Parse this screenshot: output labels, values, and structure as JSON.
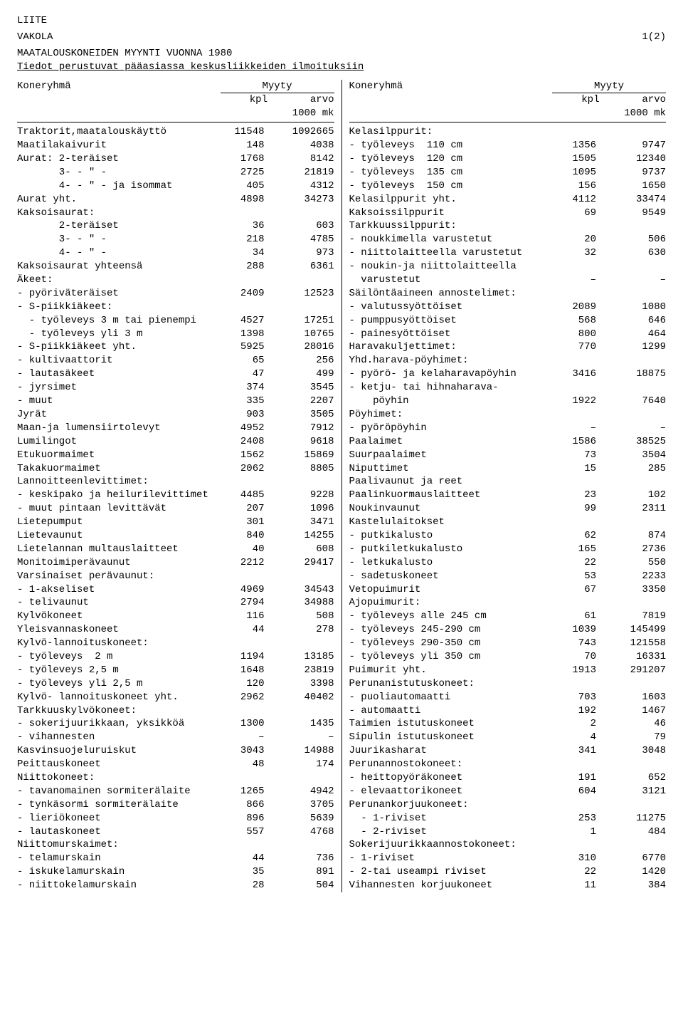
{
  "header": {
    "liite": "LIITE",
    "vakola": "VAKOLA",
    "page": "1(2)",
    "title": "MAATALOUSKONEIDEN MYYNTI VUONNA 1980",
    "subtitle": "Tiedot perustuvat pääasiassa keskusliikkeiden ilmoituksiin"
  },
  "columns": {
    "group": "Koneryhmä",
    "myyty": "Myyty",
    "kpl": "kpl",
    "arvo": "arvo",
    "unit": "1000 mk"
  },
  "left": [
    {
      "n": "Traktorit,maatalouskäyttö",
      "k": "11548",
      "a": "1092665"
    },
    {
      "n": "Maatilakaivurit",
      "k": "148",
      "a": "4038"
    },
    {
      "n": "Aurat: 2-teräiset",
      "k": "1768",
      "a": "8142"
    },
    {
      "n": "       3- - \" -",
      "k": "2725",
      "a": "21819"
    },
    {
      "n": "       4- - \" - ja isommat",
      "k": "405",
      "a": "4312"
    },
    {
      "n": "Aurat yht.",
      "k": "4898",
      "a": "34273"
    },
    {
      "n": "Kaksoisaurat:",
      "k": "",
      "a": ""
    },
    {
      "n": "       2-teräiset",
      "k": "36",
      "a": "603"
    },
    {
      "n": "       3- - \" -",
      "k": "218",
      "a": "4785"
    },
    {
      "n": "       4- - \" -",
      "k": "34",
      "a": "973"
    },
    {
      "n": "Kaksoisaurat yhteensä",
      "k": "288",
      "a": "6361"
    },
    {
      "n": "Äkeet:",
      "k": "",
      "a": ""
    },
    {
      "n": "- pyöriväteräiset",
      "k": "2409",
      "a": "12523"
    },
    {
      "n": "- S-piikkiäkeet:",
      "k": "",
      "a": ""
    },
    {
      "n": "  - työleveys 3 m tai pienempi",
      "k": "4527",
      "a": "17251"
    },
    {
      "n": "  - työleveys yli 3 m",
      "k": "1398",
      "a": "10765"
    },
    {
      "n": "- S-piikkiäkeet yht.",
      "k": "5925",
      "a": "28016"
    },
    {
      "n": "- kultivaattorit",
      "k": "65",
      "a": "256"
    },
    {
      "n": "- lautasäkeet",
      "k": "47",
      "a": "499"
    },
    {
      "n": "- jyrsimet",
      "k": "374",
      "a": "3545"
    },
    {
      "n": "- muut",
      "k": "335",
      "a": "2207"
    },
    {
      "n": "Jyrät",
      "k": "903",
      "a": "3505"
    },
    {
      "n": "Maan-ja lumensiirtolevyt",
      "k": "4952",
      "a": "7912"
    },
    {
      "n": "Lumilingot",
      "k": "2408",
      "a": "9618"
    },
    {
      "n": "Etukuormaimet",
      "k": "1562",
      "a": "15869"
    },
    {
      "n": "Takakuormaimet",
      "k": "2062",
      "a": "8805"
    },
    {
      "n": "Lannoitteenlevittimet:",
      "k": "",
      "a": ""
    },
    {
      "n": "- keskipako ja heilurilevittimet",
      "k": "4485",
      "a": "9228"
    },
    {
      "n": "- muut pintaan levittävät",
      "k": "207",
      "a": "1096"
    },
    {
      "n": "Lietepumput",
      "k": "301",
      "a": "3471"
    },
    {
      "n": "Lietevaunut",
      "k": "840",
      "a": "14255"
    },
    {
      "n": "Lietelannan multauslaitteet",
      "k": "40",
      "a": "608"
    },
    {
      "n": "Monitoimiperävaunut",
      "k": "2212",
      "a": "29417"
    },
    {
      "n": "Varsinaiset perävaunut:",
      "k": "",
      "a": ""
    },
    {
      "n": "- 1-akseliset",
      "k": "4969",
      "a": "34543"
    },
    {
      "n": "- telivaunut",
      "k": "2794",
      "a": "34988"
    },
    {
      "n": "Kylvökoneet",
      "k": "116",
      "a": "508"
    },
    {
      "n": "Yleisvannaskoneet",
      "k": "44",
      "a": "278"
    },
    {
      "n": "Kylvö-lannoituskoneet:",
      "k": "",
      "a": ""
    },
    {
      "n": "- työleveys  2 m",
      "k": "1194",
      "a": "13185"
    },
    {
      "n": "- työleveys 2,5 m",
      "k": "1648",
      "a": "23819"
    },
    {
      "n": "- työleveys yli 2,5 m",
      "k": "120",
      "a": "3398"
    },
    {
      "n": "Kylvö- lannoituskoneet yht.",
      "k": "2962",
      "a": "40402"
    },
    {
      "n": "Tarkkuuskylvökoneet:",
      "k": "",
      "a": ""
    },
    {
      "n": "- sokerijuurikkaan, yksikköä",
      "k": "1300",
      "a": "1435"
    },
    {
      "n": "- vihannesten",
      "k": "–",
      "a": "–"
    },
    {
      "n": "Kasvinsuojeluruiskut",
      "k": "3043",
      "a": "14988"
    },
    {
      "n": "Peittauskoneet",
      "k": "48",
      "a": "174"
    },
    {
      "n": "Niittokoneet:",
      "k": "",
      "a": ""
    },
    {
      "n": "- tavanomainen sormiterälaite",
      "k": "1265",
      "a": "4942"
    },
    {
      "n": "- tynkäsormi sormiterälaite",
      "k": "866",
      "a": "3705"
    },
    {
      "n": "- lieriökoneet",
      "k": "896",
      "a": "5639"
    },
    {
      "n": "- lautaskoneet",
      "k": "557",
      "a": "4768"
    },
    {
      "n": "Niittomurskaimet:",
      "k": "",
      "a": ""
    },
    {
      "n": "- telamurskain",
      "k": "44",
      "a": "736"
    },
    {
      "n": "- iskukelamurskain",
      "k": "35",
      "a": "891"
    },
    {
      "n": "- niittokelamurskain",
      "k": "28",
      "a": "504"
    }
  ],
  "right": [
    {
      "n": "Kelasilppurit:",
      "k": "",
      "a": ""
    },
    {
      "n": "- työleveys  110 cm",
      "k": "1356",
      "a": "9747"
    },
    {
      "n": "- työleveys  120 cm",
      "k": "1505",
      "a": "12340"
    },
    {
      "n": "- työleveys  135 cm",
      "k": "1095",
      "a": "9737"
    },
    {
      "n": "- työleveys  150 cm",
      "k": "156",
      "a": "1650"
    },
    {
      "n": "Kelasilppurit yht.",
      "k": "4112",
      "a": "33474"
    },
    {
      "n": "Kaksoissilppurit",
      "k": "69",
      "a": "9549"
    },
    {
      "n": "Tarkkuussilppurit:",
      "k": "",
      "a": ""
    },
    {
      "n": "- noukkimella varustetut",
      "k": "20",
      "a": "506"
    },
    {
      "n": "- niittolaitteella varustetut",
      "k": "32",
      "a": "630"
    },
    {
      "n": "- noukin-ja niittolaitteella",
      "k": "",
      "a": ""
    },
    {
      "n": "  varustetut",
      "k": "–",
      "a": "–"
    },
    {
      "n": "Säilöntäaineen annostelimet:",
      "k": "",
      "a": ""
    },
    {
      "n": "- valutussyöttöiset",
      "k": "2089",
      "a": "1080"
    },
    {
      "n": "- pumppusyöttöiset",
      "k": "568",
      "a": "646"
    },
    {
      "n": "- painesyöttöiset",
      "k": "800",
      "a": "464"
    },
    {
      "n": "Haravakuljettimet:",
      "k": "770",
      "a": "1299"
    },
    {
      "n": "Yhd.harava-pöyhimet:",
      "k": "",
      "a": ""
    },
    {
      "n": "- pyörö- ja kelaharavapöyhin",
      "k": "3416",
      "a": "18875"
    },
    {
      "n": "- ketju- tai hihnaharava-",
      "k": "",
      "a": ""
    },
    {
      "n": "    pöyhin",
      "k": "1922",
      "a": "7640"
    },
    {
      "n": "Pöyhimet:",
      "k": "",
      "a": ""
    },
    {
      "n": "- pyöröpöyhin",
      "k": "–",
      "a": "–"
    },
    {
      "n": "Paalaimet",
      "k": "1586",
      "a": "38525"
    },
    {
      "n": "Suurpaalaimet",
      "k": "73",
      "a": "3504"
    },
    {
      "n": "Niputtimet",
      "k": "15",
      "a": "285"
    },
    {
      "n": "Paalivaunut ja reet",
      "k": "",
      "a": ""
    },
    {
      "n": "Paalinkuormauslaitteet",
      "k": "23",
      "a": "102"
    },
    {
      "n": "Noukinvaunut",
      "k": "99",
      "a": "2311"
    },
    {
      "n": "Kastelulaitokset",
      "k": "",
      "a": ""
    },
    {
      "n": "- putkikalusto",
      "k": "62",
      "a": "874"
    },
    {
      "n": "- putkiletkukalusto",
      "k": "165",
      "a": "2736"
    },
    {
      "n": "- letkukalusto",
      "k": "22",
      "a": "550"
    },
    {
      "n": "- sadetuskoneet",
      "k": "53",
      "a": "2233"
    },
    {
      "n": "Vetopuimurit",
      "k": "67",
      "a": "3350"
    },
    {
      "n": "Ajopuimurit:",
      "k": "",
      "a": ""
    },
    {
      "n": "- työleveys alle 245 cm",
      "k": "61",
      "a": "7819"
    },
    {
      "n": "- työleveys 245-290 cm",
      "k": "1039",
      "a": "145499"
    },
    {
      "n": "- työleveys 290-350 cm",
      "k": "743",
      "a": "121558"
    },
    {
      "n": "- työleveys yli 350 cm",
      "k": "70",
      "a": "16331"
    },
    {
      "n": "Puimurit yht.",
      "k": "1913",
      "a": "291207"
    },
    {
      "n": "Perunanistutuskoneet:",
      "k": "",
      "a": ""
    },
    {
      "n": "- puoliautomaatti",
      "k": "703",
      "a": "1603"
    },
    {
      "n": "- automaatti",
      "k": "192",
      "a": "1467"
    },
    {
      "n": "Taimien istutuskoneet",
      "k": "2",
      "a": "46"
    },
    {
      "n": "Sipulin istutuskoneet",
      "k": "4",
      "a": "79"
    },
    {
      "n": "Juurikasharat",
      "k": "341",
      "a": "3048"
    },
    {
      "n": "Perunannostokoneet:",
      "k": "",
      "a": ""
    },
    {
      "n": "- heittopyöräkoneet",
      "k": "191",
      "a": "652"
    },
    {
      "n": "- elevaattorikoneet",
      "k": "604",
      "a": "3121"
    },
    {
      "n": "Perunankorjuukoneet:",
      "k": "",
      "a": ""
    },
    {
      "n": "  - 1-riviset",
      "k": "253",
      "a": "11275"
    },
    {
      "n": "  - 2-riviset",
      "k": "1",
      "a": "484"
    },
    {
      "n": "Sokerijuurikkaannostokoneet:",
      "k": "",
      "a": ""
    },
    {
      "n": "- 1-riviset",
      "k": "310",
      "a": "6770"
    },
    {
      "n": "- 2-tai useampi riviset",
      "k": "22",
      "a": "1420"
    },
    {
      "n": "Vihannesten korjuukoneet",
      "k": "11",
      "a": "384"
    }
  ]
}
